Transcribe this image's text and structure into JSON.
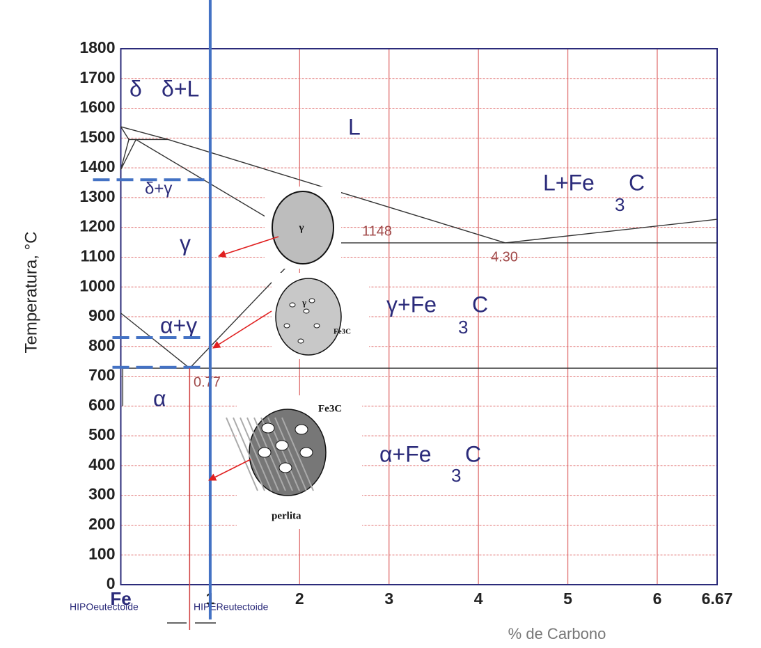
{
  "chart_data": {
    "type": "phase",
    "y_label": "Temperatura, °C",
    "x_label": "% de Carbono",
    "xlim": [
      0,
      6.67
    ],
    "ylim": [
      0,
      1800
    ],
    "xticks": [
      {
        "value": 0,
        "label": "Fe"
      },
      1,
      2,
      3,
      4,
      5,
      6,
      6.67
    ],
    "yticks": [
      0,
      100,
      200,
      300,
      400,
      500,
      600,
      700,
      800,
      900,
      1000,
      1100,
      1200,
      1300,
      1400,
      1500,
      1600,
      1700,
      1800
    ],
    "grid": true,
    "grid_color": "#e07070",
    "lines": [
      {
        "color": "#333333",
        "x": [
          0,
          0.53,
          4.3
        ],
        "y": [
          1538,
          1495,
          1148
        ]
      },
      {
        "color": "#333333",
        "x": [
          4.3,
          6.67
        ],
        "y": [
          1148,
          1227
        ]
      },
      {
        "color": "#333333",
        "x": [
          0.17,
          2.11
        ],
        "y": [
          1495,
          1148
        ]
      },
      {
        "color": "#333333",
        "x": [
          2.11,
          6.67
        ],
        "y": [
          1148,
          1148
        ]
      },
      {
        "color": "#333333",
        "x": [
          0.022,
          6.67
        ],
        "y": [
          727,
          727
        ]
      },
      {
        "color": "#333333",
        "x": [
          0,
          0.77
        ],
        "y": [
          912,
          727
        ]
      },
      {
        "color": "#333333",
        "x": [
          0.77,
          2.11
        ],
        "y": [
          727,
          1148
        ]
      },
      {
        "color": "#333333",
        "x": [
          0.09,
          0.53
        ],
        "y": [
          1495,
          1495
        ]
      },
      {
        "color": "#333333",
        "x": [
          0,
          0.09
        ],
        "y": [
          1394,
          1495
        ]
      },
      {
        "color": "#333333",
        "x": [
          0,
          0.17
        ],
        "y": [
          1394,
          1495
        ]
      },
      {
        "color": "#333333",
        "x": [
          0,
          0.09
        ],
        "y": [
          1538,
          1495
        ]
      },
      {
        "color": "#333333",
        "x": [
          0.022,
          0.022
        ],
        "y": [
          600,
          727
        ]
      }
    ],
    "labels": [
      "δ",
      "δ+L",
      "L",
      "L+Fe",
      "3",
      "C",
      "δ+γ",
      "γ",
      "α+γ",
      "γ+Fe",
      "3",
      "C",
      "α",
      "α+Fe",
      "3",
      "C",
      "1148",
      "4.30",
      "0.77"
    ],
    "vertical_lines": [
      {
        "x": 1,
        "color": "#4472c4"
      },
      {
        "x": 0.77,
        "color": "#d04040"
      }
    ],
    "dashed_lines": [
      {
        "y": 1360,
        "color": "#4472c4"
      },
      {
        "y": 830,
        "color": "#4472c4"
      },
      {
        "y": 730,
        "color": "#4472c4"
      }
    ],
    "below_axis": [
      "HIPOeutectoide",
      "HIPEReutectoide"
    ],
    "insets": [
      {
        "labels": [
          "γ"
        ]
      },
      {
        "labels": [
          "γ",
          "Fe3C"
        ]
      },
      {
        "labels": [
          "Fe3C",
          "perlita"
        ]
      }
    ]
  }
}
